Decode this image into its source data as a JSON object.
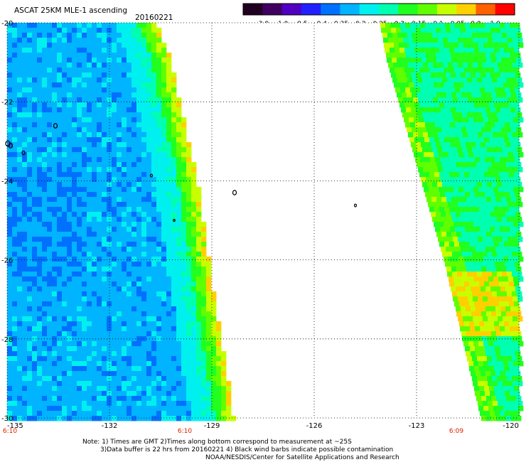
{
  "header": {
    "title": "ASCAT 25KM MLE-1 ascending",
    "date": "20160221"
  },
  "colorbar": {
    "labels": [
      "-3.0",
      "-1.0",
      "-0.5",
      "-0.4",
      "-0.35",
      "-0.3",
      "-0.25",
      "-0.2",
      "-0.15",
      "-0.1",
      "-0.05",
      "0.0",
      "1.0"
    ],
    "colors": [
      "#200020",
      "#400060",
      "#5000c0",
      "#2020ff",
      "#0070ff",
      "#00b4ff",
      "#00f0f0",
      "#00ffb0",
      "#20ff20",
      "#60ff00",
      "#c8ff00",
      "#ffd000",
      "#ff6000",
      "#ff0000"
    ]
  },
  "map": {
    "lon_range": [
      -135,
      -120
    ],
    "lat_range": [
      -30,
      -20
    ],
    "lon_ticks": [
      "-135",
      "-132",
      "-129",
      "-126",
      "-123",
      "-120"
    ],
    "lat_ticks": [
      "-20",
      "-22",
      "-24",
      "-26",
      "-28",
      "-30"
    ],
    "time_labels": [
      "6:10",
      "6:10",
      "6:09"
    ],
    "time_label_color": "#e02000"
  },
  "footer": {
    "note_line1": "Note: 1) Times are GMT 2)Times along bottom correspond to measurement at ~25S",
    "note_line2": "3)Data buffer is 22 hrs from 20160221 4) Black wind barbs indicate possible contamination",
    "credit": "NOAA/NESDIS/Center for Satellite Applications and Research"
  }
}
